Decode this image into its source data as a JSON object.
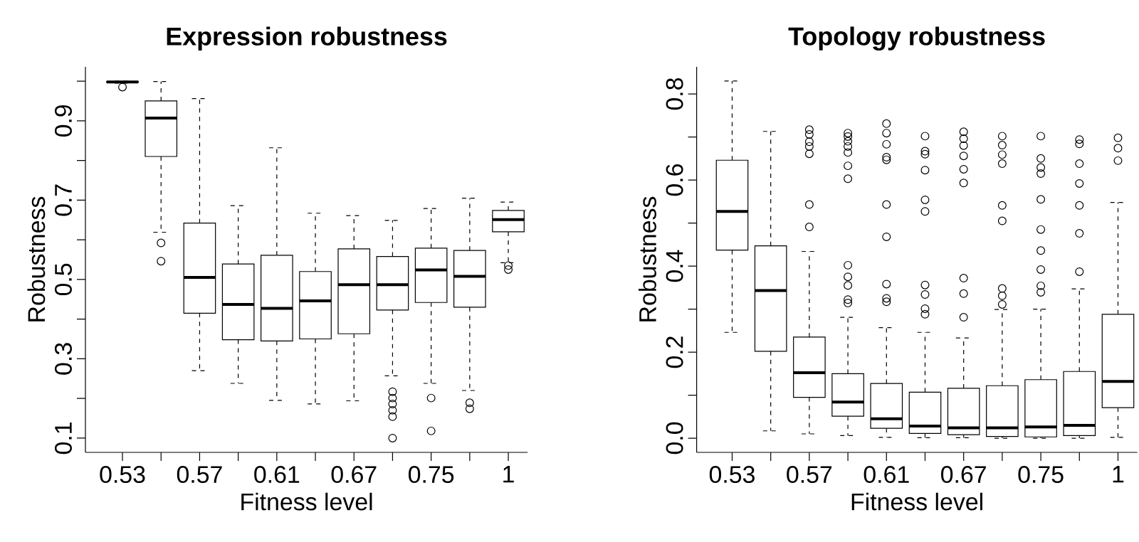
{
  "chart_data": [
    {
      "type": "box",
      "title": "Expression robustness",
      "xlabel": "Fitness level",
      "ylabel": "Robustness",
      "categories": [
        "0.53",
        null,
        "0.57",
        null,
        "0.61",
        null,
        "0.67",
        null,
        "0.75",
        null,
        "1"
      ],
      "ylim": [
        0.064,
        1.036
      ],
      "yticks": [
        {
          "value": 0.1,
          "label": "0.1"
        },
        {
          "value": 0.2,
          "label": null
        },
        {
          "value": 0.3,
          "label": "0.3"
        },
        {
          "value": 0.4,
          "label": null
        },
        {
          "value": 0.5,
          "label": "0.5"
        },
        {
          "value": 0.6,
          "label": null
        },
        {
          "value": 0.7,
          "label": "0.7"
        },
        {
          "value": 0.8,
          "label": null
        },
        {
          "value": 0.9,
          "label": "0.9"
        },
        {
          "value": 1.0,
          "label": null
        }
      ],
      "boxes": [
        {
          "low": 0.995,
          "q1": 0.997,
          "median": 0.998,
          "q3": 0.999,
          "high": 1.0,
          "outliers": [
            0.985
          ]
        },
        {
          "low": 0.619,
          "q1": 0.81,
          "median": 0.907,
          "q3": 0.95,
          "high": 0.999,
          "outliers": [
            0.592,
            0.546
          ]
        },
        {
          "low": 0.27,
          "q1": 0.415,
          "median": 0.505,
          "q3": 0.642,
          "high": 0.956
        },
        {
          "low": 0.238,
          "q1": 0.348,
          "median": 0.437,
          "q3": 0.539,
          "high": 0.686
        },
        {
          "low": 0.195,
          "q1": 0.345,
          "median": 0.427,
          "q3": 0.561,
          "high": 0.832
        },
        {
          "low": 0.186,
          "q1": 0.35,
          "median": 0.446,
          "q3": 0.52,
          "high": 0.667
        },
        {
          "low": 0.194,
          "q1": 0.363,
          "median": 0.487,
          "q3": 0.577,
          "high": 0.661
        },
        {
          "low": 0.257,
          "q1": 0.423,
          "median": 0.487,
          "q3": 0.558,
          "high": 0.649,
          "outliers": [
            0.217,
            0.201,
            0.186,
            0.17,
            0.154,
            0.1
          ]
        },
        {
          "low": 0.238,
          "q1": 0.442,
          "median": 0.524,
          "q3": 0.579,
          "high": 0.679,
          "outliers": [
            0.201,
            0.118
          ]
        },
        {
          "low": 0.22,
          "q1": 0.43,
          "median": 0.508,
          "q3": 0.573,
          "high": 0.705,
          "outliers": [
            0.189,
            0.174
          ]
        },
        {
          "low": 0.542,
          "q1": 0.62,
          "median": 0.651,
          "q3": 0.674,
          "high": 0.695,
          "outliers": [
            0.535,
            0.525
          ]
        }
      ]
    },
    {
      "type": "box",
      "title": "Topology robustness",
      "xlabel": "Fitness level",
      "ylabel": "Robustness",
      "categories": [
        "0.53",
        null,
        "0.57",
        null,
        "0.61",
        null,
        "0.67",
        null,
        "0.75",
        null,
        "1"
      ],
      "ylim": [
        -0.033,
        0.863
      ],
      "yticks": [
        {
          "value": 0.0,
          "label": "0.0"
        },
        {
          "value": 0.1,
          "label": null
        },
        {
          "value": 0.2,
          "label": "0.2"
        },
        {
          "value": 0.3,
          "label": null
        },
        {
          "value": 0.4,
          "label": "0.4"
        },
        {
          "value": 0.5,
          "label": null
        },
        {
          "value": 0.6,
          "label": "0.6"
        },
        {
          "value": 0.7,
          "label": null
        },
        {
          "value": 0.8,
          "label": "0.8"
        }
      ],
      "boxes": [
        {
          "low": 0.246,
          "q1": 0.437,
          "median": 0.527,
          "q3": 0.646,
          "high": 0.83
        },
        {
          "low": 0.017,
          "q1": 0.202,
          "median": 0.343,
          "q3": 0.447,
          "high": 0.713
        },
        {
          "low": 0.01,
          "q1": 0.095,
          "median": 0.152,
          "q3": 0.235,
          "high": 0.434,
          "outliers": [
            0.717,
            0.706,
            0.689,
            0.678,
            0.661,
            0.543,
            0.491
          ]
        },
        {
          "low": 0.006,
          "q1": 0.051,
          "median": 0.084,
          "q3": 0.15,
          "high": 0.281,
          "outliers": [
            0.709,
            0.701,
            0.69,
            0.678,
            0.664,
            0.633,
            0.603,
            0.402,
            0.375,
            0.355,
            0.322,
            0.314
          ]
        },
        {
          "low": 0.002,
          "q1": 0.023,
          "median": 0.045,
          "q3": 0.127,
          "high": 0.257,
          "outliers": [
            0.731,
            0.709,
            0.683,
            0.653,
            0.647,
            0.543,
            0.468,
            0.358,
            0.325,
            0.317
          ]
        },
        {
          "low": 0.001,
          "q1": 0.011,
          "median": 0.028,
          "q3": 0.107,
          "high": 0.246,
          "outliers": [
            0.702,
            0.667,
            0.66,
            0.623,
            0.554,
            0.527,
            0.356,
            0.334,
            0.301,
            0.288
          ]
        },
        {
          "low": 0.001,
          "q1": 0.008,
          "median": 0.024,
          "q3": 0.116,
          "high": 0.233,
          "outliers": [
            0.712,
            0.696,
            0.68,
            0.656,
            0.625,
            0.593,
            0.372,
            0.336,
            0.281
          ]
        },
        {
          "low": 0.0,
          "q1": 0.004,
          "median": 0.024,
          "q3": 0.122,
          "high": 0.299,
          "outliers": [
            0.702,
            0.681,
            0.659,
            0.638,
            0.541,
            0.505,
            0.348,
            0.331,
            0.311
          ]
        },
        {
          "low": 0.0,
          "q1": 0.003,
          "median": 0.026,
          "q3": 0.136,
          "high": 0.3,
          "outliers": [
            0.702,
            0.65,
            0.629,
            0.615,
            0.555,
            0.485,
            0.436,
            0.392,
            0.354,
            0.339
          ]
        },
        {
          "low": 0.0,
          "q1": 0.006,
          "median": 0.03,
          "q3": 0.155,
          "high": 0.347,
          "outliers": [
            0.694,
            0.684,
            0.638,
            0.592,
            0.541,
            0.476,
            0.387
          ]
        },
        {
          "low": 0.002,
          "q1": 0.071,
          "median": 0.132,
          "q3": 0.288,
          "high": 0.548,
          "outliers": [
            0.698,
            0.674,
            0.645
          ]
        }
      ]
    }
  ]
}
